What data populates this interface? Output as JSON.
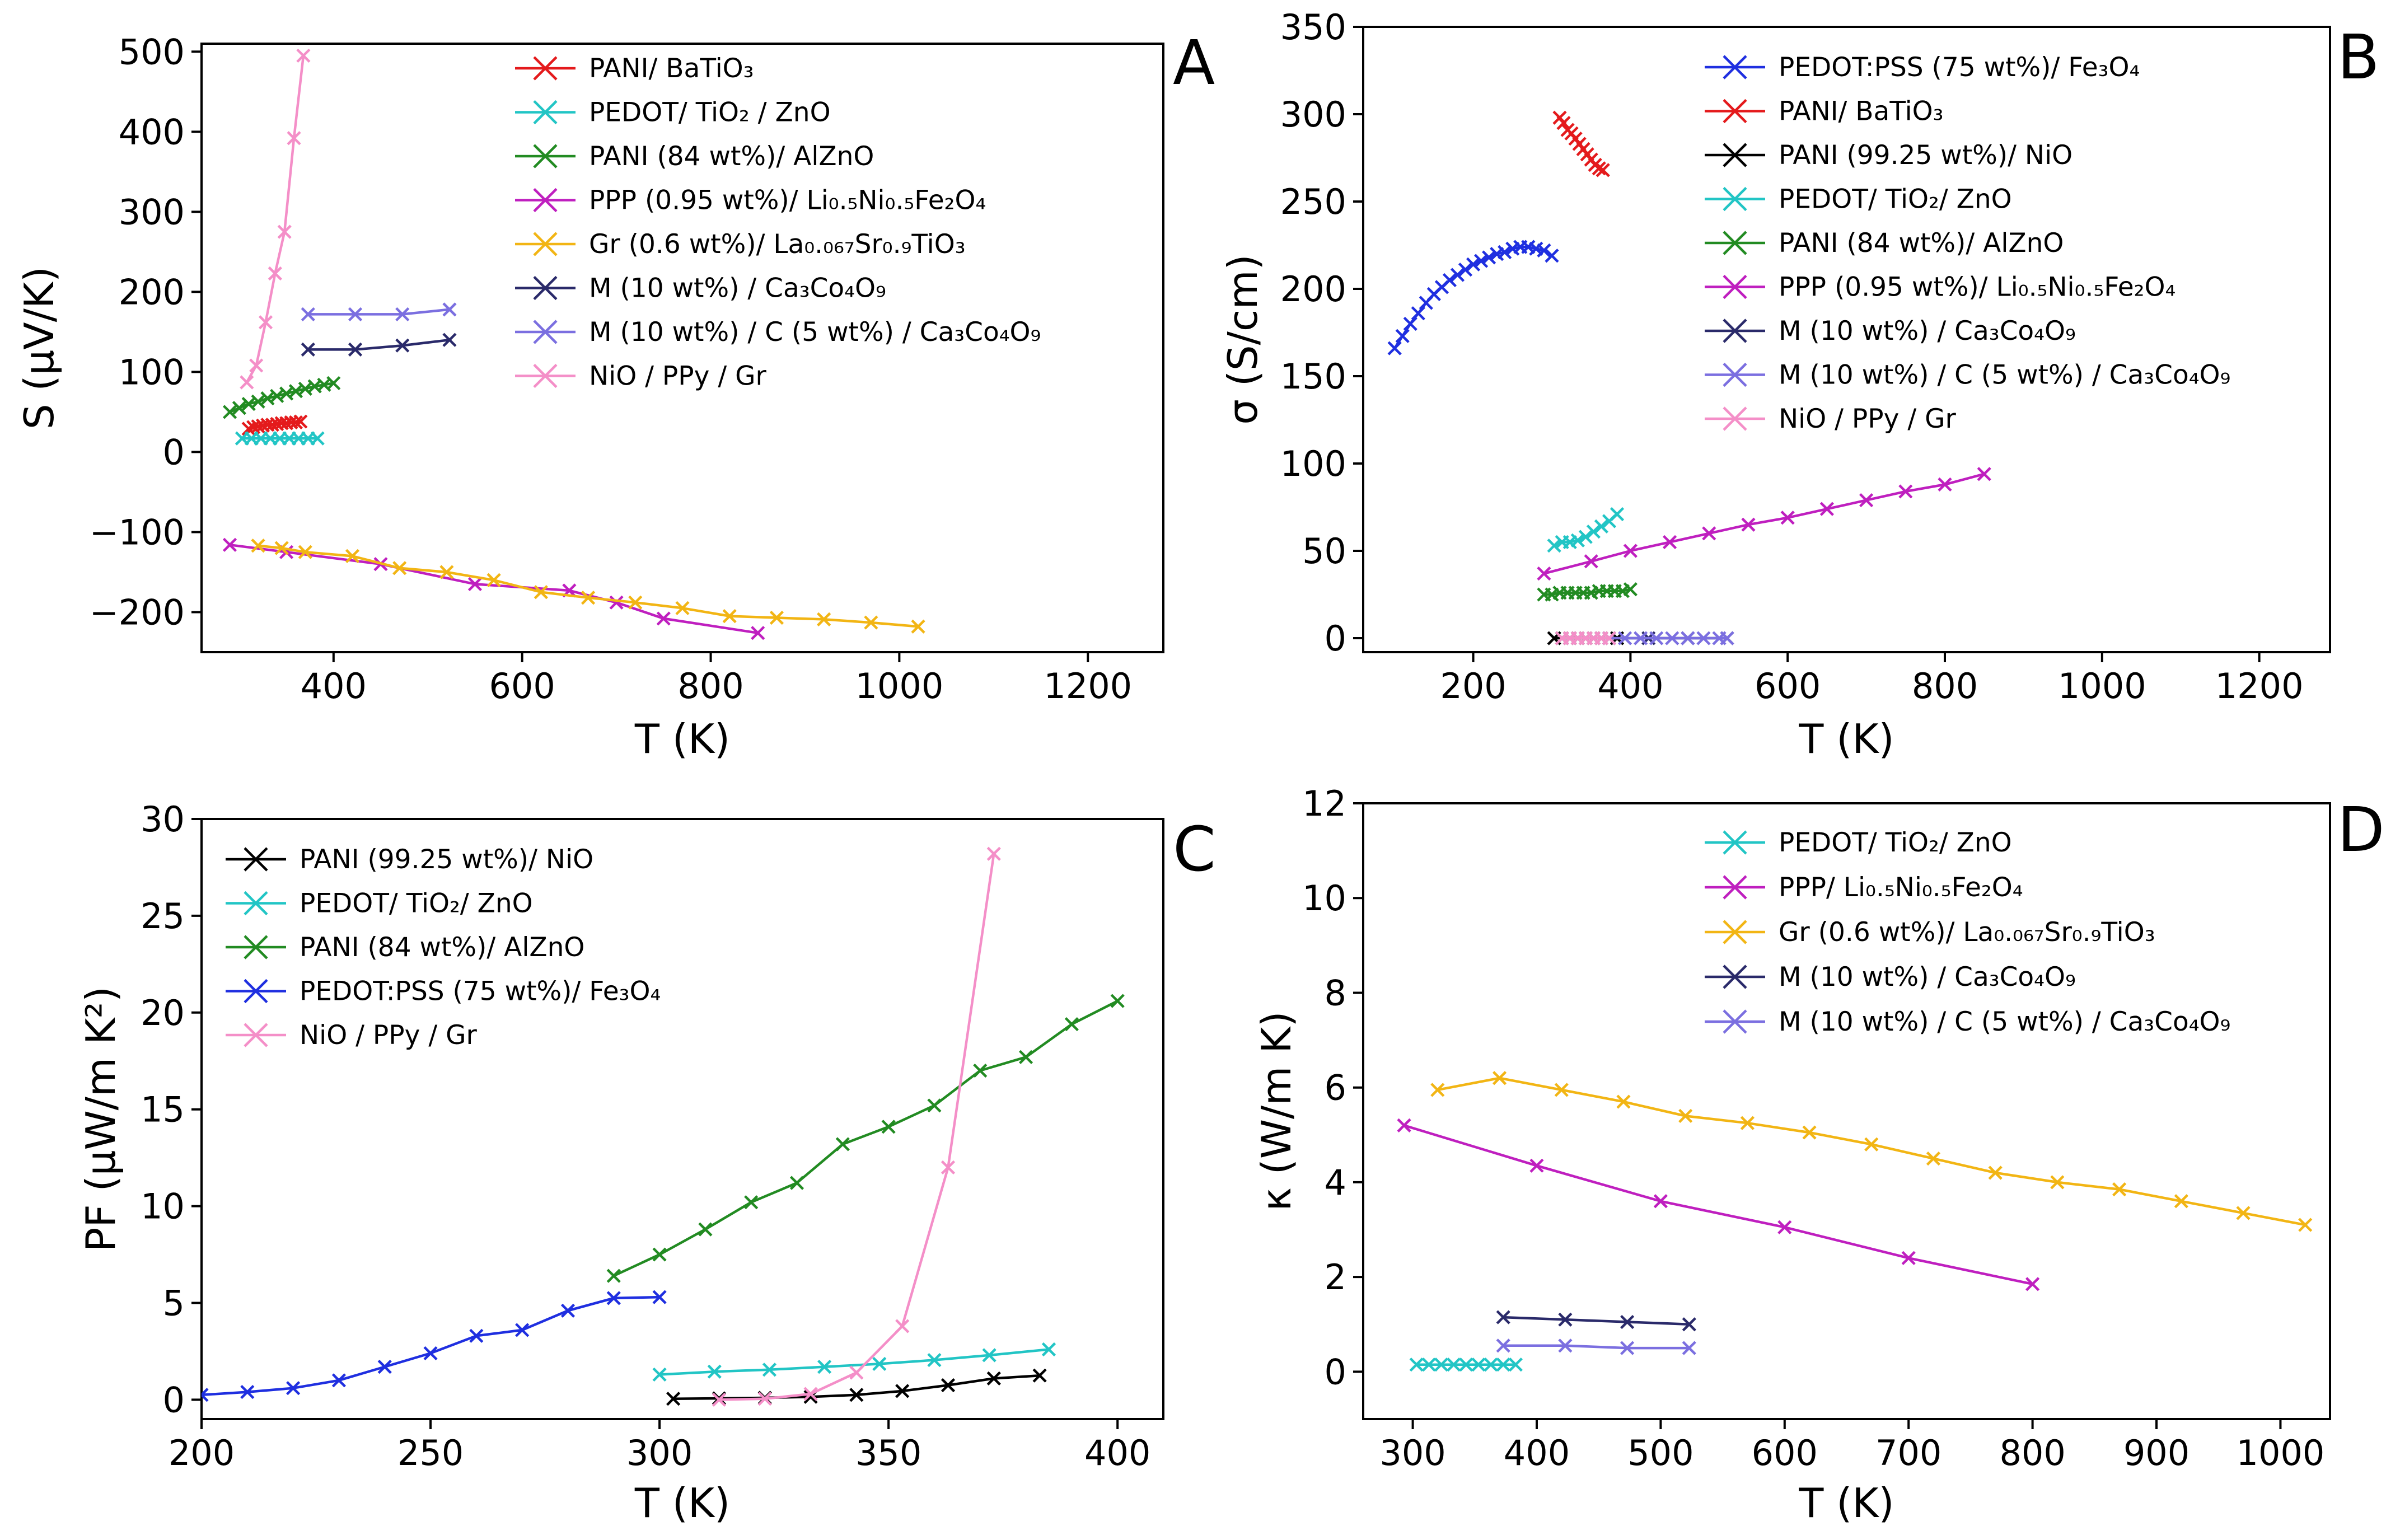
{
  "chart_data": [
    {
      "type": "line",
      "panel": "A",
      "panel_label": "A",
      "xlabel": "T (K)",
      "ylabel": "S (μV/K)",
      "xlim": [
        260,
        1280
      ],
      "ylim": [
        -250,
        510
      ],
      "xticks": [
        400,
        600,
        800,
        1000,
        1200
      ],
      "yticks": [
        -200,
        -100,
        0,
        100,
        200,
        300,
        400,
        500
      ],
      "ytick_labels": [
        "−200",
        "−100",
        "0",
        "100",
        "200",
        "300",
        "400",
        "500"
      ],
      "legend_position": "top-right",
      "series": [
        {
          "name": "PANI/ BaTiO₃",
          "color": "#e41a1c",
          "x": [
            310,
            315,
            320,
            325,
            330,
            335,
            340,
            345,
            350,
            355,
            360,
            365
          ],
          "y": [
            29,
            31,
            32,
            33,
            34,
            34,
            35,
            36,
            36,
            37,
            37,
            38
          ]
        },
        {
          "name": "PEDOT/ TiO₂ / ZnO",
          "color": "#22c5c5",
          "x": [
            303,
            313,
            323,
            333,
            343,
            353,
            363,
            373,
            383
          ],
          "y": [
            17,
            17,
            17,
            17,
            17,
            17,
            17,
            17,
            17
          ]
        },
        {
          "name": "PANI (84 wt%)/ AlZnO",
          "color": "#228b22",
          "x": [
            290,
            300,
            310,
            320,
            330,
            340,
            350,
            360,
            370,
            380,
            390,
            400
          ],
          "y": [
            50,
            55,
            60,
            63,
            67,
            70,
            73,
            76,
            79,
            82,
            84,
            86
          ]
        },
        {
          "name": "PPP (0.95 wt%)/ Li₀.₅Ni₀.₅Fe₂O₄",
          "color": "#bf1fbf",
          "x": [
            290,
            350,
            450,
            550,
            650,
            700,
            750,
            850
          ],
          "y": [
            -116,
            -125,
            -140,
            -165,
            -173,
            -188,
            -208,
            -226
          ]
        },
        {
          "name": "Gr (0.6 wt%)/ La₀.₀₆₇Sr₀.₉TiO₃",
          "color": "#f2b514",
          "x": [
            320,
            345,
            370,
            420,
            470,
            520,
            570,
            620,
            670,
            720,
            770,
            820,
            870,
            920,
            970,
            1020
          ],
          "y": [
            -117,
            -120,
            -125,
            -130,
            -145,
            -150,
            -160,
            -175,
            -182,
            -188,
            -195,
            -205,
            -207,
            -209,
            -213,
            -218
          ]
        },
        {
          "name": "M (10 wt%) / Ca₃Co₄O₉",
          "color": "#2a2a6a",
          "x": [
            373,
            423,
            473,
            523
          ],
          "y": [
            128,
            128,
            133,
            140
          ]
        },
        {
          "name": "M (10 wt%) / C (5 wt%) / Ca₃Co₄O₉",
          "color": "#7b6fe0",
          "x": [
            373,
            423,
            473,
            523
          ],
          "y": [
            172,
            172,
            172,
            178
          ]
        },
        {
          "name": "NiO / PPy / Gr",
          "color": "#f48fc8",
          "x": [
            308,
            318,
            328,
            338,
            348,
            358,
            368
          ],
          "y": [
            87,
            108,
            162,
            223,
            275,
            392,
            495
          ]
        }
      ]
    },
    {
      "type": "line",
      "panel": "B",
      "panel_label": "B",
      "xlabel": "T (K)",
      "ylabel": "σ (S/cm)",
      "xlim": [
        60,
        1290
      ],
      "ylim": [
        -8,
        350
      ],
      "xticks": [
        200,
        400,
        600,
        800,
        1000,
        1200
      ],
      "yticks": [
        0,
        50,
        100,
        150,
        200,
        250,
        300,
        350
      ],
      "ytick_labels": [
        "0",
        "50",
        "100",
        "150",
        "200",
        "250",
        "300",
        "350"
      ],
      "legend_position": "top-right",
      "series": [
        {
          "name": "PEDOT:PSS (75 wt%)/ Fe₃O₄",
          "color": "#1f2fe0",
          "x": [
            100,
            110,
            120,
            130,
            140,
            150,
            160,
            170,
            180,
            190,
            200,
            210,
            220,
            230,
            240,
            250,
            260,
            270,
            280,
            290,
            300
          ],
          "y": [
            166,
            173,
            180,
            186,
            192,
            197,
            201,
            205,
            208,
            211,
            214,
            216,
            218,
            220,
            221,
            223,
            224,
            224,
            223,
            222,
            219
          ]
        },
        {
          "name": "PANI/ BaTiO₃",
          "color": "#e41a1c",
          "x": [
            310,
            315,
            320,
            325,
            330,
            335,
            340,
            345,
            350,
            355,
            360,
            365
          ],
          "y": [
            298,
            295,
            291,
            289,
            286,
            283,
            280,
            277,
            274,
            271,
            269,
            268
          ]
        },
        {
          "name": "PANI (99.25 wt%)/ NiO",
          "color": "#000000",
          "x": [
            303,
            313,
            323,
            333,
            343,
            353,
            363,
            373,
            383
          ],
          "y": [
            0,
            0,
            0,
            0,
            0,
            0,
            0,
            0,
            0
          ]
        },
        {
          "name": "PEDOT/ TiO₂/ ZnO",
          "color": "#22c5c5",
          "x": [
            303,
            313,
            323,
            333,
            343,
            353,
            363,
            373,
            383
          ],
          "y": [
            53,
            55,
            55,
            56,
            58,
            61,
            64,
            67,
            71
          ]
        },
        {
          "name": "PANI (84 wt%)/ AlZnO",
          "color": "#228b22",
          "x": [
            290,
            300,
            310,
            320,
            330,
            340,
            350,
            360,
            370,
            380,
            390,
            400
          ],
          "y": [
            25,
            25,
            26,
            26,
            26,
            26,
            26,
            27,
            27,
            27,
            27,
            28
          ]
        },
        {
          "name": "PPP (0.95 wt%)/ Li₀.₅Ni₀.₅Fe₂O₄",
          "color": "#bf1fbf",
          "x": [
            290,
            350,
            400,
            450,
            500,
            550,
            600,
            650,
            700,
            750,
            800,
            850
          ],
          "y": [
            37,
            44,
            50,
            55,
            60,
            65,
            69,
            74,
            79,
            84,
            88,
            94
          ]
        },
        {
          "name": "M (10 wt%) / Ca₃Co₄O₉",
          "color": "#2a2a6a",
          "x": [
            373,
            423,
            473,
            523
          ],
          "y": [
            0,
            0,
            0,
            0
          ]
        },
        {
          "name": "M (10 wt%) / C (5 wt%) / Ca₃Co₄O₉",
          "color": "#7b6fe0",
          "x": [
            373,
            393,
            413,
            433,
            453,
            473,
            493,
            513,
            523
          ],
          "y": [
            0,
            0,
            0,
            0,
            0,
            0,
            0,
            0,
            0
          ]
        },
        {
          "name": "NiO / PPy / Gr",
          "color": "#f48fc8",
          "x": [
            313,
            323,
            333,
            343,
            353,
            363,
            373
          ],
          "y": [
            0,
            0,
            0,
            0,
            0,
            0,
            0
          ]
        }
      ]
    },
    {
      "type": "line",
      "panel": "C",
      "panel_label": "C",
      "xlabel": "T (K)",
      "ylabel": "PF (μW/m K²)",
      "xlim": [
        200,
        410
      ],
      "ylim": [
        -1,
        30
      ],
      "xticks": [
        200,
        250,
        300,
        350,
        400
      ],
      "yticks": [
        0,
        5,
        10,
        15,
        20,
        25,
        30
      ],
      "ytick_labels": [
        "0",
        "5",
        "10",
        "15",
        "20",
        "25",
        "30"
      ],
      "legend_position": "top-left",
      "series": [
        {
          "name": "PANI (99.25 wt%)/ NiO",
          "color": "#000000",
          "x": [
            303,
            313,
            323,
            333,
            343,
            353,
            363,
            373,
            383
          ],
          "y": [
            0.05,
            0.07,
            0.1,
            0.15,
            0.25,
            0.45,
            0.75,
            1.1,
            1.25
          ]
        },
        {
          "name": "PEDOT/ TiO₂/ ZnO",
          "color": "#22c5c5",
          "x": [
            300,
            312,
            324,
            336,
            348,
            360,
            372,
            385
          ],
          "y": [
            1.3,
            1.45,
            1.55,
            1.7,
            1.85,
            2.05,
            2.3,
            2.6
          ]
        },
        {
          "name": "PANI (84 wt%)/ AlZnO",
          "color": "#228b22",
          "x": [
            290,
            300,
            310,
            320,
            330,
            340,
            350,
            360,
            370,
            380,
            390,
            400
          ],
          "y": [
            6.4,
            7.5,
            8.8,
            10.2,
            11.2,
            13.2,
            14.1,
            15.2,
            17.0,
            17.7,
            19.4,
            20.6
          ]
        },
        {
          "name": "PEDOT:PSS (75 wt%)/ Fe₃O₄",
          "color": "#1f2fe0",
          "x": [
            200,
            210,
            220,
            230,
            240,
            250,
            260,
            270,
            280,
            290,
            300
          ],
          "y": [
            0.25,
            0.4,
            0.6,
            1.0,
            1.7,
            2.4,
            3.3,
            3.6,
            4.6,
            5.25,
            5.3
          ]
        },
        {
          "name": "NiO / PPy / Gr",
          "color": "#f48fc8",
          "x": [
            313,
            323,
            333,
            343,
            353,
            363,
            373
          ],
          "y": [
            0.0,
            0.05,
            0.3,
            1.4,
            3.8,
            12.0,
            28.2
          ]
        }
      ]
    },
    {
      "type": "line",
      "panel": "D",
      "panel_label": "D",
      "xlabel": "T (K)",
      "ylabel": "κ (W/m K)",
      "xlim": [
        260,
        1040
      ],
      "ylim": [
        -1,
        12
      ],
      "xticks": [
        300,
        400,
        500,
        600,
        700,
        800,
        900,
        1000
      ],
      "yticks": [
        0,
        2,
        4,
        6,
        8,
        10,
        12
      ],
      "ytick_labels": [
        "0",
        "2",
        "4",
        "6",
        "8",
        "10",
        "12"
      ],
      "legend_position": "top-right",
      "series": [
        {
          "name": "PEDOT/ TiO₂/ ZnO",
          "color": "#22c5c5",
          "x": [
            303,
            313,
            323,
            333,
            343,
            353,
            363,
            373,
            383
          ],
          "y": [
            0.15,
            0.15,
            0.15,
            0.15,
            0.15,
            0.15,
            0.15,
            0.15,
            0.15
          ]
        },
        {
          "name": "PPP/ Li₀.₅Ni₀.₅Fe₂O₄",
          "color": "#bf1fbf",
          "x": [
            293,
            400,
            500,
            600,
            700,
            800
          ],
          "y": [
            5.2,
            4.35,
            3.6,
            3.05,
            2.4,
            1.85
          ]
        },
        {
          "name": "Gr (0.6 wt%)/ La₀.₀₆₇Sr₀.₉TiO₃",
          "color": "#f2b514",
          "x": [
            320,
            370,
            420,
            470,
            520,
            570,
            620,
            670,
            720,
            770,
            820,
            870,
            920,
            970,
            1020
          ],
          "y": [
            5.95,
            6.2,
            5.95,
            5.7,
            5.4,
            5.25,
            5.05,
            4.8,
            4.5,
            4.2,
            4.0,
            3.85,
            3.6,
            3.35,
            3.1
          ]
        },
        {
          "name": "M (10 wt%) / Ca₃Co₄O₉",
          "color": "#2a2a6a",
          "x": [
            373,
            423,
            473,
            523
          ],
          "y": [
            1.15,
            1.1,
            1.05,
            1.0
          ]
        },
        {
          "name": "M (10 wt%) / C (5 wt%) / Ca₃Co₄O₉",
          "color": "#7b6fe0",
          "x": [
            373,
            423,
            473,
            523
          ],
          "y": [
            0.55,
            0.55,
            0.5,
            0.5
          ]
        }
      ]
    }
  ]
}
